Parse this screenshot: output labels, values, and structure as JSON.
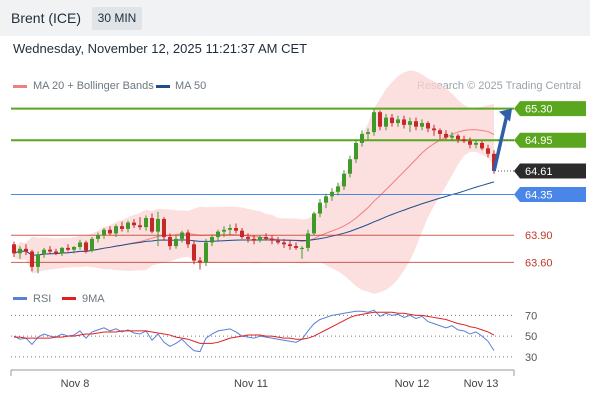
{
  "header": {
    "instrument": "Brent (ICE)",
    "timeframe": "30 MIN",
    "datetime": "Wednesday, November 12, 2025 11:21:37 AM CET"
  },
  "legend": {
    "ma20_label": "MA 20 + Bollinger Bands",
    "ma20_color": "#f08080",
    "ma50_label": "MA 50",
    "ma50_color": "#1f4e8c",
    "credit": "Research © 2025 Trading Central"
  },
  "rsi_legend": {
    "rsi_label": "RSI",
    "rsi_color": "#5b7fd6",
    "ma9_label": "9MA",
    "ma9_color": "#e02020"
  },
  "chart_data": [
    {
      "type": "candlestick",
      "title": "Brent (ICE)",
      "x_tick_labels": [
        "Nov 8",
        "Nov 11",
        "Nov 12",
        "Nov 13"
      ],
      "ylim": [
        63.35,
        65.45
      ],
      "levels": [
        {
          "label": "65.30",
          "value": 65.3,
          "kind": "resistance",
          "color": "#5aa61e",
          "badge": true
        },
        {
          "label": "64.95",
          "value": 64.95,
          "kind": "resistance",
          "color": "#5aa61e",
          "badge": true
        },
        {
          "label": "64.61",
          "value": 64.61,
          "kind": "current",
          "color": "#2b2b2b",
          "badge": true
        },
        {
          "label": "64.35",
          "value": 64.35,
          "kind": "pivot",
          "color": "#4a86e8",
          "badge": true
        },
        {
          "label": "63.90",
          "value": 63.9,
          "kind": "support",
          "color": "#c0392b",
          "badge": false
        },
        {
          "label": "63.60",
          "value": 63.6,
          "kind": "support",
          "color": "#c0392b",
          "badge": false
        }
      ],
      "up_color": "#3f9a2b",
      "down_color": "#c62828",
      "band_color": "#fbd4d4",
      "projection": {
        "from": 64.61,
        "to": 65.3
      },
      "candles": [
        [
          63.8,
          63.83,
          63.66,
          63.7
        ],
        [
          63.7,
          63.78,
          63.64,
          63.75
        ],
        [
          63.75,
          63.8,
          63.68,
          63.72
        ],
        [
          63.72,
          63.74,
          63.5,
          63.55
        ],
        [
          63.55,
          63.72,
          63.48,
          63.69
        ],
        [
          63.69,
          63.76,
          63.65,
          63.74
        ],
        [
          63.74,
          63.78,
          63.7,
          63.72
        ],
        [
          63.72,
          63.75,
          63.68,
          63.7
        ],
        [
          63.7,
          63.77,
          63.67,
          63.76
        ],
        [
          63.76,
          63.8,
          63.72,
          63.74
        ],
        [
          63.74,
          63.78,
          63.7,
          63.77
        ],
        [
          63.77,
          63.85,
          63.74,
          63.82
        ],
        [
          63.82,
          63.84,
          63.7,
          63.73
        ],
        [
          63.73,
          63.88,
          63.71,
          63.86
        ],
        [
          63.86,
          63.93,
          63.82,
          63.9
        ],
        [
          63.9,
          63.98,
          63.86,
          63.96
        ],
        [
          63.96,
          64.0,
          63.9,
          63.92
        ],
        [
          63.92,
          64.02,
          63.88,
          64.0
        ],
        [
          64.0,
          64.05,
          63.94,
          63.97
        ],
        [
          63.97,
          64.06,
          63.93,
          64.04
        ],
        [
          64.04,
          64.08,
          63.98,
          64.01
        ],
        [
          64.01,
          64.1,
          63.96,
          63.99
        ],
        [
          63.99,
          64.12,
          63.95,
          64.09
        ],
        [
          64.09,
          64.14,
          63.92,
          63.94
        ],
        [
          63.94,
          64.16,
          63.78,
          64.08
        ],
        [
          64.08,
          64.1,
          63.84,
          63.88
        ],
        [
          63.88,
          63.92,
          63.74,
          63.78
        ],
        [
          63.78,
          63.9,
          63.75,
          63.86
        ],
        [
          63.86,
          63.95,
          63.82,
          63.93
        ],
        [
          63.93,
          63.96,
          63.76,
          63.8
        ],
        [
          63.8,
          63.84,
          63.58,
          63.62
        ],
        [
          63.62,
          63.66,
          63.52,
          63.6
        ],
        [
          63.6,
          63.86,
          63.56,
          63.82
        ],
        [
          63.82,
          63.9,
          63.78,
          63.88
        ],
        [
          63.88,
          63.96,
          63.84,
          63.94
        ],
        [
          63.94,
          64.0,
          63.88,
          63.96
        ],
        [
          63.96,
          64.02,
          63.9,
          63.98
        ],
        [
          63.98,
          64.03,
          63.92,
          63.95
        ],
        [
          63.95,
          63.98,
          63.86,
          63.88
        ],
        [
          63.88,
          63.92,
          63.82,
          63.86
        ],
        [
          63.86,
          63.9,
          63.8,
          63.84
        ],
        [
          63.84,
          63.9,
          63.82,
          63.88
        ],
        [
          63.88,
          63.92,
          63.84,
          63.86
        ],
        [
          63.86,
          63.9,
          63.8,
          63.84
        ],
        [
          63.84,
          63.88,
          63.8,
          63.82
        ],
        [
          63.82,
          63.86,
          63.76,
          63.8
        ],
        [
          63.8,
          63.84,
          63.74,
          63.78
        ],
        [
          63.78,
          63.82,
          63.74,
          63.76
        ],
        [
          63.76,
          63.78,
          63.64,
          63.76
        ],
        [
          63.76,
          63.96,
          63.72,
          63.92
        ],
        [
          63.92,
          64.16,
          63.9,
          64.14
        ],
        [
          64.14,
          64.3,
          64.1,
          64.26
        ],
        [
          64.26,
          64.36,
          64.2,
          64.33
        ],
        [
          64.33,
          64.42,
          64.28,
          64.38
        ],
        [
          64.38,
          64.48,
          64.34,
          64.44
        ],
        [
          64.44,
          64.62,
          64.4,
          64.58
        ],
        [
          64.58,
          64.78,
          64.54,
          64.74
        ],
        [
          64.74,
          64.96,
          64.7,
          64.92
        ],
        [
          64.92,
          65.06,
          64.88,
          65.02
        ],
        [
          65.02,
          65.08,
          64.96,
          65.04
        ],
        [
          65.04,
          65.3,
          65.0,
          65.26
        ],
        [
          65.26,
          65.28,
          65.06,
          65.1
        ],
        [
          65.1,
          65.24,
          65.06,
          65.2
        ],
        [
          65.2,
          65.24,
          65.1,
          65.14
        ],
        [
          65.14,
          65.22,
          65.1,
          65.18
        ],
        [
          65.18,
          65.22,
          65.08,
          65.12
        ],
        [
          65.12,
          65.2,
          65.04,
          65.16
        ],
        [
          65.16,
          65.2,
          65.06,
          65.1
        ],
        [
          65.1,
          65.18,
          65.06,
          65.14
        ],
        [
          65.14,
          65.16,
          65.04,
          65.08
        ],
        [
          65.08,
          65.12,
          65.0,
          65.06
        ],
        [
          65.06,
          65.08,
          64.96,
          65.02
        ],
        [
          65.02,
          65.06,
          64.96,
          64.98
        ],
        [
          64.98,
          65.04,
          64.94,
          65.0
        ],
        [
          65.0,
          65.02,
          64.92,
          64.96
        ],
        [
          64.96,
          65.0,
          64.92,
          64.94
        ],
        [
          64.94,
          64.98,
          64.86,
          64.9
        ],
        [
          64.9,
          64.96,
          64.86,
          64.92
        ],
        [
          64.92,
          64.94,
          64.84,
          64.86
        ],
        [
          64.86,
          64.9,
          64.76,
          64.8
        ],
        [
          64.8,
          64.84,
          64.58,
          64.61
        ]
      ]
    },
    {
      "type": "line",
      "title": "RSI",
      "x_tick_labels": [
        "Nov 8",
        "Nov 11",
        "Nov 12",
        "Nov 13"
      ],
      "y_tick_labels": [
        "70",
        "50",
        "30"
      ],
      "ylim": [
        25,
        80
      ],
      "series": [
        {
          "name": "RSI",
          "values": [
            50,
            47,
            48,
            42,
            49,
            52,
            50,
            49,
            52,
            50,
            51,
            55,
            48,
            54,
            56,
            58,
            55,
            57,
            54,
            56,
            53,
            52,
            55,
            46,
            52,
            44,
            40,
            43,
            47,
            41,
            36,
            35,
            48,
            52,
            55,
            56,
            57,
            54,
            50,
            49,
            48,
            50,
            49,
            48,
            47,
            46,
            45,
            44,
            47,
            55,
            62,
            66,
            68,
            70,
            71,
            72,
            73,
            74,
            74,
            73,
            75,
            69,
            72,
            70,
            71,
            68,
            70,
            67,
            69,
            64,
            62,
            60,
            58,
            60,
            56,
            55,
            52,
            54,
            50,
            45,
            36
          ]
        },
        {
          "name": "9MA",
          "values": [
            49,
            49,
            48,
            48,
            48,
            48,
            48,
            49,
            49,
            50,
            50,
            51,
            52,
            52,
            53,
            54,
            54,
            54,
            55,
            55,
            55,
            55,
            55,
            54,
            53,
            52,
            51,
            49,
            48,
            47,
            45,
            43,
            43,
            43,
            44,
            46,
            48,
            49,
            50,
            51,
            51,
            51,
            50,
            50,
            49,
            48,
            48,
            47,
            47,
            48,
            50,
            53,
            56,
            59,
            62,
            65,
            68,
            70,
            71,
            72,
            73,
            73,
            73,
            73,
            72,
            72,
            71,
            70,
            70,
            69,
            68,
            67,
            66,
            64,
            62,
            61,
            59,
            58,
            56,
            54,
            51
          ]
        }
      ]
    }
  ]
}
